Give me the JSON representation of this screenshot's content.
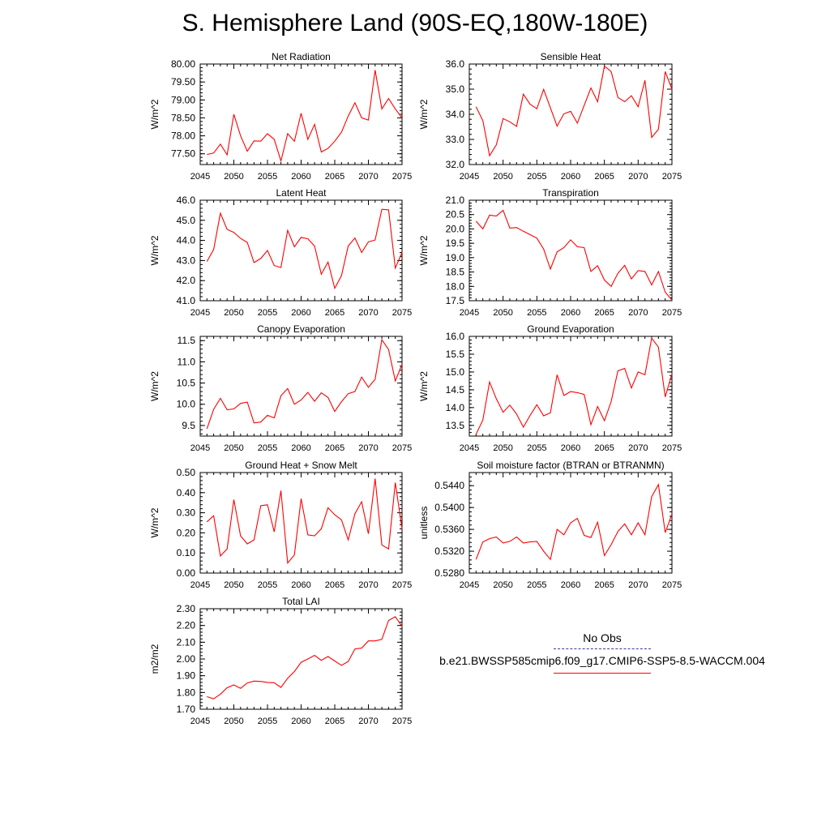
{
  "page_title": "S. Hemisphere Land (90S-EQ,180W-180E)",
  "legend": {
    "items": [
      {
        "label": "No Obs",
        "style": "dashed",
        "color": "#3a3a9a"
      },
      {
        "label": "b.e21.BWSSP585cmip6.f09_g17.CMIP6-SSP5-8.5-WACCM.004",
        "style": "solid",
        "color": "#ff0000"
      }
    ]
  },
  "line_color": "#ff0000",
  "chart_data": [
    {
      "type": "line",
      "title": "Net Radiation",
      "ylabel": "W/m^2",
      "xlim": [
        2045,
        2075
      ],
      "ylim": [
        77.2,
        80.0
      ],
      "xticks": [
        2045,
        2050,
        2055,
        2060,
        2065,
        2070,
        2075
      ],
      "yticks": [
        77.5,
        78.0,
        78.5,
        79.0,
        79.5,
        80.0
      ],
      "ydecimals": 2,
      "x": [
        2046,
        2047,
        2048,
        2049,
        2050,
        2051,
        2052,
        2053,
        2054,
        2055,
        2056,
        2057,
        2058,
        2059,
        2060,
        2061,
        2062,
        2063,
        2064,
        2065,
        2066,
        2067,
        2068,
        2069,
        2070,
        2071,
        2072,
        2073,
        2074,
        2075
      ],
      "values": [
        77.48,
        77.52,
        77.77,
        77.47,
        78.6,
        78.0,
        77.57,
        77.86,
        77.85,
        78.06,
        77.9,
        77.3,
        78.06,
        77.85,
        78.63,
        77.9,
        78.32,
        77.55,
        77.65,
        77.85,
        78.1,
        78.55,
        78.92,
        78.5,
        78.44,
        79.83,
        78.75,
        79.04,
        78.75,
        78.5
      ]
    },
    {
      "type": "line",
      "title": "Sensible Heat",
      "ylabel": "W/m^2",
      "xlim": [
        2045,
        2075
      ],
      "ylim": [
        32.0,
        36.0
      ],
      "xticks": [
        2045,
        2050,
        2055,
        2060,
        2065,
        2070,
        2075
      ],
      "yticks": [
        32.0,
        33.0,
        34.0,
        35.0,
        36.0
      ],
      "ydecimals": 1,
      "x": [
        2046,
        2047,
        2048,
        2049,
        2050,
        2051,
        2052,
        2053,
        2054,
        2055,
        2056,
        2057,
        2058,
        2059,
        2060,
        2061,
        2062,
        2063,
        2064,
        2065,
        2066,
        2067,
        2068,
        2069,
        2070,
        2071,
        2072,
        2073,
        2074,
        2075
      ],
      "values": [
        34.3,
        33.75,
        32.35,
        32.78,
        33.83,
        33.7,
        33.52,
        34.8,
        34.4,
        34.22,
        34.99,
        34.26,
        33.53,
        34.02,
        34.12,
        33.65,
        34.35,
        35.05,
        34.5,
        35.92,
        35.7,
        34.67,
        34.5,
        34.74,
        34.3,
        35.35,
        33.08,
        33.4,
        35.7,
        35.0
      ]
    },
    {
      "type": "line",
      "title": "Latent Heat",
      "ylabel": "W/m^2",
      "xlim": [
        2045,
        2075
      ],
      "ylim": [
        41.0,
        46.0
      ],
      "xticks": [
        2045,
        2050,
        2055,
        2060,
        2065,
        2070,
        2075
      ],
      "yticks": [
        41.0,
        42.0,
        43.0,
        44.0,
        45.0,
        46.0
      ],
      "ydecimals": 1,
      "x": [
        2046,
        2047,
        2048,
        2049,
        2050,
        2051,
        2052,
        2053,
        2054,
        2055,
        2056,
        2057,
        2058,
        2059,
        2060,
        2061,
        2062,
        2063,
        2064,
        2065,
        2066,
        2067,
        2068,
        2069,
        2070,
        2071,
        2072,
        2073,
        2074,
        2075
      ],
      "values": [
        42.95,
        43.55,
        45.35,
        44.55,
        44.4,
        44.1,
        43.9,
        42.9,
        43.1,
        43.5,
        42.75,
        42.65,
        44.5,
        43.68,
        44.15,
        44.08,
        43.72,
        42.32,
        42.92,
        41.62,
        42.25,
        43.72,
        44.12,
        43.4,
        43.93,
        44.02,
        45.55,
        45.52,
        42.62,
        43.4
      ]
    },
    {
      "type": "line",
      "title": "Transpiration",
      "ylabel": "W/m^2",
      "xlim": [
        2045,
        2075
      ],
      "ylim": [
        17.5,
        21.0
      ],
      "xticks": [
        2045,
        2050,
        2055,
        2060,
        2065,
        2070,
        2075
      ],
      "yticks": [
        17.5,
        18.0,
        18.5,
        19.0,
        19.5,
        20.0,
        20.5,
        21.0
      ],
      "ydecimals": 1,
      "x": [
        2046,
        2047,
        2048,
        2049,
        2050,
        2051,
        2052,
        2053,
        2054,
        2055,
        2056,
        2057,
        2058,
        2059,
        2060,
        2061,
        2062,
        2063,
        2064,
        2065,
        2066,
        2067,
        2068,
        2069,
        2070,
        2071,
        2072,
        2073,
        2074,
        2075
      ],
      "values": [
        20.27,
        20.0,
        20.48,
        20.45,
        20.65,
        20.03,
        20.05,
        19.92,
        19.8,
        19.68,
        19.3,
        18.6,
        19.2,
        19.35,
        19.62,
        19.38,
        19.35,
        18.52,
        18.72,
        18.22,
        18.0,
        18.45,
        18.73,
        18.26,
        18.55,
        18.52,
        18.05,
        18.52,
        17.8,
        17.52
      ]
    },
    {
      "type": "line",
      "title": "Canopy Evaporation",
      "ylabel": "W/m^2",
      "xlim": [
        2045,
        2075
      ],
      "ylim": [
        9.25,
        11.6
      ],
      "xticks": [
        2045,
        2050,
        2055,
        2060,
        2065,
        2070,
        2075
      ],
      "yticks": [
        9.5,
        10.0,
        10.5,
        11.0,
        11.5
      ],
      "ydecimals": 1,
      "x": [
        2046,
        2047,
        2048,
        2049,
        2050,
        2051,
        2052,
        2053,
        2054,
        2055,
        2056,
        2057,
        2058,
        2059,
        2060,
        2061,
        2062,
        2063,
        2064,
        2065,
        2066,
        2067,
        2068,
        2069,
        2070,
        2071,
        2072,
        2073,
        2074,
        2075
      ],
      "values": [
        9.42,
        9.88,
        10.14,
        9.87,
        9.89,
        10.02,
        10.05,
        9.56,
        9.58,
        9.74,
        9.68,
        10.2,
        10.37,
        10.0,
        10.1,
        10.28,
        10.07,
        10.27,
        10.16,
        9.83,
        10.06,
        10.25,
        10.3,
        10.64,
        10.4,
        10.59,
        11.52,
        11.29,
        10.55,
        10.94
      ]
    },
    {
      "type": "line",
      "title": "Ground Evaporation",
      "ylabel": "W/m^2",
      "xlim": [
        2045,
        2075
      ],
      "ylim": [
        13.2,
        16.0
      ],
      "xticks": [
        2045,
        2050,
        2055,
        2060,
        2065,
        2070,
        2075
      ],
      "yticks": [
        13.5,
        14.0,
        14.5,
        15.0,
        15.5,
        16.0
      ],
      "ydecimals": 1,
      "x": [
        2046,
        2047,
        2048,
        2049,
        2050,
        2051,
        2052,
        2053,
        2054,
        2055,
        2056,
        2057,
        2058,
        2059,
        2060,
        2061,
        2062,
        2063,
        2064,
        2065,
        2066,
        2067,
        2068,
        2069,
        2070,
        2071,
        2072,
        2073,
        2074,
        2075
      ],
      "values": [
        13.25,
        13.65,
        14.72,
        14.25,
        13.87,
        14.07,
        13.82,
        13.45,
        13.78,
        14.08,
        13.77,
        13.85,
        14.92,
        14.34,
        14.45,
        14.42,
        14.37,
        13.52,
        14.03,
        13.63,
        14.17,
        15.03,
        15.1,
        14.55,
        15.0,
        14.92,
        15.95,
        15.7,
        14.3,
        14.95
      ]
    },
    {
      "type": "line",
      "title": "Ground Heat + Snow Melt",
      "ylabel": "W/m^2",
      "xlim": [
        2045,
        2075
      ],
      "ylim": [
        0.0,
        0.5
      ],
      "xticks": [
        2045,
        2050,
        2055,
        2060,
        2065,
        2070,
        2075
      ],
      "yticks": [
        0.0,
        0.1,
        0.2,
        0.3,
        0.4,
        0.5
      ],
      "ydecimals": 2,
      "x": [
        2046,
        2047,
        2048,
        2049,
        2050,
        2051,
        2052,
        2053,
        2054,
        2055,
        2056,
        2057,
        2058,
        2059,
        2060,
        2061,
        2062,
        2063,
        2064,
        2065,
        2066,
        2067,
        2068,
        2069,
        2070,
        2071,
        2072,
        2073,
        2074,
        2075
      ],
      "values": [
        0.255,
        0.285,
        0.085,
        0.12,
        0.365,
        0.185,
        0.145,
        0.165,
        0.335,
        0.34,
        0.205,
        0.41,
        0.05,
        0.09,
        0.37,
        0.19,
        0.185,
        0.22,
        0.325,
        0.29,
        0.265,
        0.165,
        0.295,
        0.355,
        0.195,
        0.47,
        0.14,
        0.12,
        0.45,
        0.22
      ]
    },
    {
      "type": "line",
      "title": "Soil moisture factor (BTRAN or BTRANMN)",
      "ylabel": "unitless",
      "xlim": [
        2045,
        2075
      ],
      "ylim": [
        0.528,
        0.5464
      ],
      "xticks": [
        2045,
        2050,
        2055,
        2060,
        2065,
        2070,
        2075
      ],
      "yticks": [
        0.528,
        0.532,
        0.536,
        0.54,
        0.544
      ],
      "ydecimals": 4,
      "x": [
        2046,
        2047,
        2048,
        2049,
        2050,
        2051,
        2052,
        2053,
        2054,
        2055,
        2056,
        2057,
        2058,
        2059,
        2060,
        2061,
        2062,
        2063,
        2064,
        2065,
        2066,
        2067,
        2068,
        2069,
        2070,
        2071,
        2072,
        2073,
        2074,
        2075
      ],
      "values": [
        0.5305,
        0.5337,
        0.5343,
        0.5346,
        0.5335,
        0.5338,
        0.5346,
        0.5335,
        0.5337,
        0.5338,
        0.532,
        0.5305,
        0.536,
        0.535,
        0.5372,
        0.538,
        0.5349,
        0.5345,
        0.5373,
        0.5312,
        0.5332,
        0.5356,
        0.537,
        0.535,
        0.5372,
        0.535,
        0.542,
        0.5442,
        0.5354,
        0.5388
      ]
    },
    {
      "type": "line",
      "title": "Total LAI",
      "ylabel": "m2/m2",
      "xlim": [
        2045,
        2075
      ],
      "ylim": [
        1.7,
        2.3
      ],
      "xticks": [
        2045,
        2050,
        2055,
        2060,
        2065,
        2070,
        2075
      ],
      "yticks": [
        1.7,
        1.8,
        1.9,
        2.0,
        2.1,
        2.2,
        2.3
      ],
      "ydecimals": 2,
      "x": [
        2046,
        2047,
        2048,
        2049,
        2050,
        2051,
        2052,
        2053,
        2054,
        2055,
        2056,
        2057,
        2058,
        2059,
        2060,
        2061,
        2062,
        2063,
        2064,
        2065,
        2066,
        2067,
        2068,
        2069,
        2070,
        2071,
        2072,
        2073,
        2074,
        2075
      ],
      "values": [
        1.775,
        1.762,
        1.79,
        1.828,
        1.845,
        1.825,
        1.857,
        1.868,
        1.866,
        1.86,
        1.858,
        1.83,
        1.885,
        1.925,
        1.98,
        2.0,
        2.022,
        1.992,
        2.015,
        1.988,
        1.962,
        1.985,
        2.06,
        2.065,
        2.108,
        2.108,
        2.117,
        2.23,
        2.252,
        2.195
      ]
    }
  ]
}
